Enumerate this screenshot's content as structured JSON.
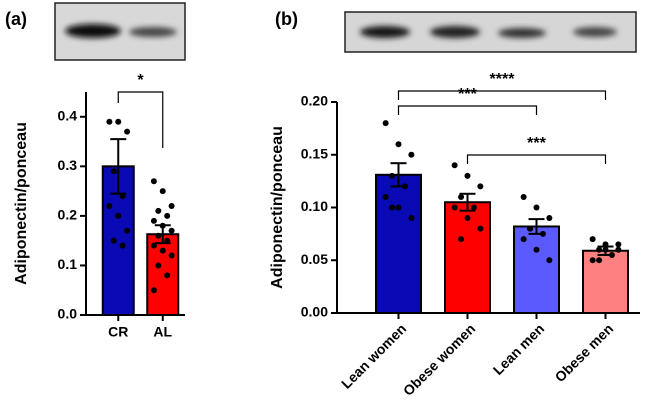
{
  "chart_data": [
    {
      "type": "bar",
      "panel_label": "(a)",
      "ylabel": "Adiponectin/ponceau",
      "categories": [
        "CR",
        "AL"
      ],
      "values": [
        0.3,
        0.163
      ],
      "errors": [
        0.055,
        0.018
      ],
      "colors": [
        "#0a0ab4",
        "#ff0000"
      ],
      "points": [
        [
          0.39,
          0.39,
          0.37,
          0.29,
          0.24,
          0.22,
          0.2,
          0.17,
          0.15,
          0.14
        ],
        [
          0.27,
          0.25,
          0.22,
          0.21,
          0.2,
          0.19,
          0.18,
          0.17,
          0.16,
          0.15,
          0.14,
          0.13,
          0.12,
          0.1,
          0.08,
          0.05
        ]
      ],
      "ylim": [
        0,
        0.45
      ],
      "yticks": [
        {
          "value": 0,
          "label": "0.0"
        },
        0.1,
        0.2,
        0.3,
        0.4
      ],
      "annotations": [
        {
          "text": "*",
          "from": "CR",
          "to": "AL"
        }
      ]
    },
    {
      "type": "bar",
      "panel_label": "(b)",
      "ylabel": "Adiponectin/ponceau",
      "categories": [
        "Lean women",
        "Obese women",
        "Lean men",
        "Obese men"
      ],
      "values": [
        0.131,
        0.105,
        0.082,
        0.059
      ],
      "errors": [
        0.011,
        0.008,
        0.007,
        0.004
      ],
      "colors": [
        "#0a0ab4",
        "#ff0000",
        "#5a5aff",
        "#ff8080"
      ],
      "points": [
        [
          0.18,
          0.16,
          0.15,
          0.13,
          0.12,
          0.11,
          0.1,
          0.09,
          0.1
        ],
        [
          0.14,
          0.13,
          0.12,
          0.11,
          0.1,
          0.1,
          0.09,
          0.08,
          0.07
        ],
        [
          0.11,
          0.1,
          0.09,
          0.08,
          0.075,
          0.07,
          0.06,
          0.05,
          0.08
        ],
        [
          0.07,
          0.065,
          0.06,
          0.06,
          0.055,
          0.05,
          0.06,
          0.065,
          0.05
        ]
      ],
      "ylim": [
        0,
        0.2
      ],
      "yticks": [
        {
          "value": 0,
          "label": "0.00"
        },
        0.05,
        {
          "value": 0.1,
          "label": "0.10"
        },
        0.15,
        {
          "value": 0.2,
          "label": "0.20"
        }
      ],
      "annotations": [
        {
          "text": "****",
          "from": "Lean women",
          "to": "Obese men"
        },
        {
          "text": "***",
          "from": "Lean women",
          "to": "Lean men"
        },
        {
          "text": "***",
          "from": "Obese women",
          "to": "Obese men"
        }
      ]
    }
  ]
}
